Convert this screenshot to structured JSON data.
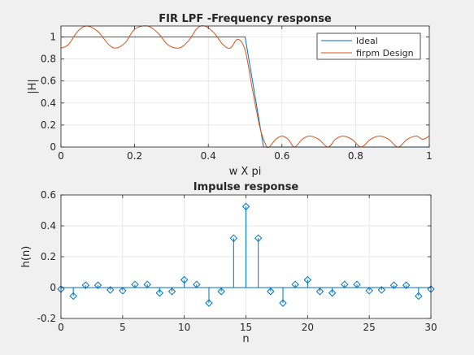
{
  "colors": {
    "ideal": "#0072bd",
    "design": "#d95319",
    "stem": "#0072bd",
    "grid": "#dfdfdf",
    "axes_bg": "#ffffff",
    "figure_bg": "#f0f0f0"
  },
  "chart_data": [
    {
      "type": "line",
      "title": "FIR LPF -Frequency response",
      "xlabel": "w X pi",
      "ylabel": "|H|",
      "xlim": [
        0,
        1
      ],
      "ylim": [
        0,
        1.1
      ],
      "xticks": [
        0,
        0.2,
        0.4,
        0.6,
        0.8,
        1
      ],
      "xticklabels": [
        "0",
        "0.2",
        "0.4",
        "0.6",
        "0.8",
        "1"
      ],
      "yticks": [
        0,
        0.2,
        0.4,
        0.6,
        0.8,
        1
      ],
      "yticklabels": [
        "0",
        "0.2",
        "0.4",
        "0.6",
        "0.8",
        "1"
      ],
      "grid": true,
      "legend_position": "top-right",
      "series": [
        {
          "name": "Ideal",
          "x": [
            0,
            0.5,
            0.55,
            1
          ],
          "y": [
            1,
            1,
            0,
            0
          ]
        },
        {
          "name": "firpm Design",
          "x": [
            0,
            0.02,
            0.045,
            0.07,
            0.1,
            0.13,
            0.15,
            0.175,
            0.2,
            0.235,
            0.265,
            0.29,
            0.32,
            0.345,
            0.37,
            0.39,
            0.415,
            0.44,
            0.46,
            0.48,
            0.5,
            0.52,
            0.54,
            0.556,
            0.565,
            0.583,
            0.6,
            0.617,
            0.634,
            0.655,
            0.675,
            0.7,
            0.725,
            0.745,
            0.765,
            0.79,
            0.815,
            0.84,
            0.865,
            0.89,
            0.915,
            0.94,
            0.965,
            0.982,
            1
          ],
          "y": [
            0.9,
            0.93,
            1.05,
            1.1,
            1.05,
            0.93,
            0.9,
            0.95,
            1.07,
            1.1,
            1.03,
            0.93,
            0.9,
            0.96,
            1.08,
            1.1,
            1.04,
            0.93,
            0.9,
            0.98,
            0.88,
            0.52,
            0.18,
            0.02,
            0,
            0.07,
            0.1,
            0.07,
            0,
            0.07,
            0.1,
            0.07,
            0,
            0.07,
            0.1,
            0.07,
            0,
            0.07,
            0.1,
            0.07,
            0,
            0.07,
            0.1,
            0.07,
            0.1
          ]
        }
      ]
    },
    {
      "type": "stem",
      "title": "Impulse response",
      "xlabel": "n",
      "ylabel": "h(n)",
      "xlim": [
        0,
        30
      ],
      "ylim": [
        -0.2,
        0.6
      ],
      "xticks": [
        0,
        5,
        10,
        15,
        20,
        25,
        30
      ],
      "xticklabels": [
        "0",
        "5",
        "10",
        "15",
        "20",
        "25",
        "30"
      ],
      "yticks": [
        -0.2,
        0,
        0.2,
        0.4,
        0.6
      ],
      "yticklabels": [
        "-0.2",
        "0",
        "0.2",
        "0.4",
        "0.6"
      ],
      "grid": true,
      "x": [
        0,
        1,
        2,
        3,
        4,
        5,
        6,
        7,
        8,
        9,
        10,
        11,
        12,
        13,
        14,
        15,
        16,
        17,
        18,
        19,
        20,
        21,
        22,
        23,
        24,
        25,
        26,
        27,
        28,
        29,
        30
      ],
      "values": [
        -0.01,
        -0.055,
        0.015,
        0.015,
        -0.015,
        -0.02,
        0.02,
        0.02,
        -0.035,
        -0.025,
        0.05,
        0.02,
        -0.1,
        -0.025,
        0.32,
        0.525,
        0.32,
        -0.025,
        -0.1,
        0.02,
        0.05,
        -0.025,
        -0.035,
        0.02,
        0.02,
        -0.02,
        -0.015,
        0.015,
        0.015,
        -0.055,
        -0.01
      ]
    }
  ]
}
